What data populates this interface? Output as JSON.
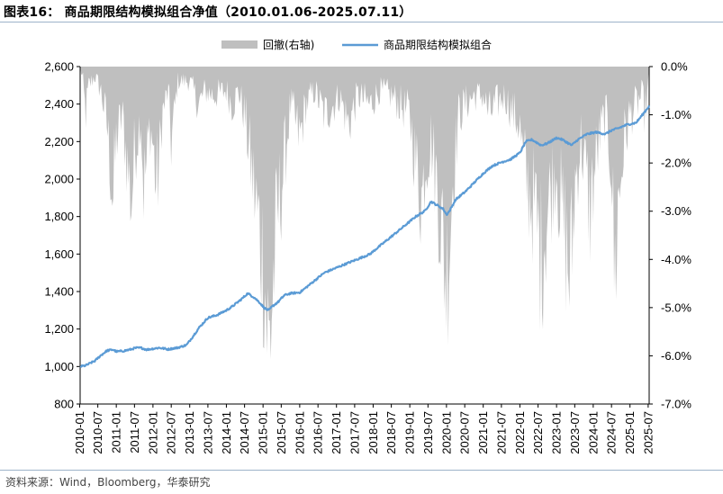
{
  "header": {
    "title": "图表16： 商品期限结构模拟组合净值（2010.01.06-2025.07.11）"
  },
  "footer": {
    "source": "资料来源：Wind，Bloomberg，华泰研究"
  },
  "colors": {
    "drawdown": "#bfbfbf",
    "nav": "#5b9bd5",
    "rule": "#9db3c9"
  },
  "chart_data": {
    "type": "area",
    "x_range": [
      "2010-01-06",
      "2025-07-11"
    ],
    "x_ticks": [
      "2010-01",
      "2010-07",
      "2011-01",
      "2011-07",
      "2012-01",
      "2012-07",
      "2013-01",
      "2013-07",
      "2014-01",
      "2014-07",
      "2015-01",
      "2015-07",
      "2016-01",
      "2016-07",
      "2017-01",
      "2017-07",
      "2018-01",
      "2018-07",
      "2019-01",
      "2019-07",
      "2020-01",
      "2020-07",
      "2021-01",
      "2021-07",
      "2022-01",
      "2022-07",
      "2023-01",
      "2023-07",
      "2024-01",
      "2024-07",
      "2025-01",
      "2025-07"
    ],
    "y_left": {
      "ticks": [
        "800",
        "1,000",
        "1,200",
        "1,400",
        "1,600",
        "1,800",
        "2,000",
        "2,200",
        "2,400",
        "2,600"
      ],
      "range": [
        800,
        2600
      ]
    },
    "y_right": {
      "ticks": [
        "0.0%",
        "-1.0%",
        "-2.0%",
        "-3.0%",
        "-4.0%",
        "-5.0%",
        "-6.0%",
        "-7.0%"
      ],
      "range": [
        -7.0,
        0.0
      ]
    },
    "legend": {
      "position": "top",
      "entries": [
        "回撤(右轴)",
        "商品期限结构模拟组合"
      ]
    },
    "series": [
      {
        "name": "回撤(右轴)",
        "axis": "right",
        "kind": "area",
        "unit": "%",
        "points": [
          [
            "2010-01-06",
            0.0
          ],
          [
            "2010-02",
            -0.3
          ],
          [
            "2010-03",
            -1.0
          ],
          [
            "2010-04",
            -0.4
          ],
          [
            "2010-06",
            -0.2
          ],
          [
            "2010-08",
            -0.5
          ],
          [
            "2010-10",
            -1.2
          ],
          [
            "2010-11",
            -2.0
          ],
          [
            "2010-12",
            -2.8
          ],
          [
            "2011-01",
            -1.5
          ],
          [
            "2011-03",
            -1.0
          ],
          [
            "2011-05",
            -2.2
          ],
          [
            "2011-06",
            -2.8
          ],
          [
            "2011-07",
            -1.8
          ],
          [
            "2011-09",
            -1.0
          ],
          [
            "2011-10",
            -2.5
          ],
          [
            "2011-11",
            -2.0
          ],
          [
            "2011-12",
            -1.2
          ],
          [
            "2012-01",
            -1.6
          ],
          [
            "2012-02",
            -2.5
          ],
          [
            "2012-03",
            -2.1
          ],
          [
            "2012-04",
            -1.0
          ],
          [
            "2012-06",
            -0.5
          ],
          [
            "2012-07",
            -1.6
          ],
          [
            "2012-08",
            -1.0
          ],
          [
            "2012-09",
            -0.3
          ],
          [
            "2013-01",
            -0.3
          ],
          [
            "2013-04",
            -0.8
          ],
          [
            "2013-06",
            -0.5
          ],
          [
            "2013-09",
            -0.6
          ],
          [
            "2014-01",
            -0.5
          ],
          [
            "2014-03",
            -0.8
          ],
          [
            "2014-05",
            -0.5
          ],
          [
            "2014-07",
            -1.0
          ],
          [
            "2014-09",
            -2.0
          ],
          [
            "2014-11",
            -3.0
          ],
          [
            "2015-01",
            -4.0
          ],
          [
            "2015-02",
            -5.0
          ],
          [
            "2015-03",
            -6.0
          ],
          [
            "2015-04",
            -4.8
          ],
          [
            "2015-06",
            -3.0
          ],
          [
            "2015-08",
            -2.0
          ],
          [
            "2015-10",
            -0.8
          ],
          [
            "2016-01",
            -1.5
          ],
          [
            "2016-03",
            -0.8
          ],
          [
            "2016-06",
            -0.5
          ],
          [
            "2016-09",
            -1.0
          ],
          [
            "2016-12",
            -0.8
          ],
          [
            "2017-02",
            -0.6
          ],
          [
            "2017-05",
            -1.2
          ],
          [
            "2017-08",
            -0.6
          ],
          [
            "2017-12",
            -0.8
          ],
          [
            "2018-03",
            -0.5
          ],
          [
            "2018-07",
            -0.6
          ],
          [
            "2018-10",
            -0.8
          ],
          [
            "2019-01",
            -1.0
          ],
          [
            "2019-03",
            -2.0
          ],
          [
            "2019-05",
            -2.8
          ],
          [
            "2019-06",
            -2.0
          ],
          [
            "2019-08",
            -1.5
          ],
          [
            "2019-10",
            -2.5
          ],
          [
            "2019-12",
            -3.8
          ],
          [
            "2020-01",
            -4.4
          ],
          [
            "2020-02",
            -3.6
          ],
          [
            "2020-03",
            -2.4
          ],
          [
            "2020-05",
            -1.0
          ],
          [
            "2020-07",
            -0.8
          ],
          [
            "2020-10",
            -0.6
          ],
          [
            "2021-01",
            -0.6
          ],
          [
            "2021-03",
            -1.0
          ],
          [
            "2021-05",
            -0.8
          ],
          [
            "2021-08",
            -0.6
          ],
          [
            "2021-11",
            -1.0
          ],
          [
            "2022-01",
            -1.2
          ],
          [
            "2022-02",
            -2.0
          ],
          [
            "2022-04",
            -2.6
          ],
          [
            "2022-06",
            -3.0
          ],
          [
            "2022-08",
            -4.0
          ],
          [
            "2022-09",
            -3.5
          ],
          [
            "2022-11",
            -2.6
          ],
          [
            "2023-01",
            -2.0
          ],
          [
            "2023-02",
            -2.8
          ],
          [
            "2023-04",
            -3.6
          ],
          [
            "2023-05",
            -4.3
          ],
          [
            "2023-06",
            -4.0
          ],
          [
            "2023-07",
            -2.5
          ],
          [
            "2023-09",
            -1.5
          ],
          [
            "2023-11",
            -2.5
          ],
          [
            "2023-12",
            -3.0
          ],
          [
            "2024-01",
            -2.4
          ],
          [
            "2024-03",
            -1.5
          ],
          [
            "2024-05",
            -1.0
          ],
          [
            "2024-07",
            -2.0
          ],
          [
            "2024-08",
            -4.5
          ],
          [
            "2024-09",
            -3.0
          ],
          [
            "2024-11",
            -1.6
          ],
          [
            "2025-01",
            -1.0
          ],
          [
            "2025-03",
            -0.8
          ],
          [
            "2025-05",
            -0.6
          ],
          [
            "2025-06",
            -1.0
          ],
          [
            "2025-07-11",
            -0.2
          ]
        ]
      },
      {
        "name": "商品期限结构模拟组合",
        "axis": "left",
        "kind": "line",
        "points": [
          [
            "2010-01-06",
            1000
          ],
          [
            "2010-03",
            1005
          ],
          [
            "2010-06",
            1030
          ],
          [
            "2010-08",
            1060
          ],
          [
            "2010-10",
            1085
          ],
          [
            "2010-12",
            1090
          ],
          [
            "2011-01",
            1080
          ],
          [
            "2011-03",
            1082
          ],
          [
            "2011-06",
            1092
          ],
          [
            "2011-07",
            1098
          ],
          [
            "2011-09",
            1100
          ],
          [
            "2011-11",
            1090
          ],
          [
            "2012-01",
            1095
          ],
          [
            "2012-03",
            1100
          ],
          [
            "2012-06",
            1092
          ],
          [
            "2012-07",
            1095
          ],
          [
            "2012-09",
            1100
          ],
          [
            "2012-12",
            1115
          ],
          [
            "2013-02",
            1160
          ],
          [
            "2013-04",
            1205
          ],
          [
            "2013-07",
            1260
          ],
          [
            "2013-10",
            1275
          ],
          [
            "2014-01",
            1300
          ],
          [
            "2014-03",
            1320
          ],
          [
            "2014-06",
            1360
          ],
          [
            "2014-08",
            1390
          ],
          [
            "2014-10",
            1370
          ],
          [
            "2014-12",
            1340
          ],
          [
            "2015-01",
            1320
          ],
          [
            "2015-02",
            1305
          ],
          [
            "2015-03",
            1300
          ],
          [
            "2015-04",
            1320
          ],
          [
            "2015-06",
            1345
          ],
          [
            "2015-08",
            1380
          ],
          [
            "2015-10",
            1390
          ],
          [
            "2016-01",
            1395
          ],
          [
            "2016-03",
            1420
          ],
          [
            "2016-06",
            1460
          ],
          [
            "2016-09",
            1500
          ],
          [
            "2016-12",
            1520
          ],
          [
            "2017-03",
            1540
          ],
          [
            "2017-06",
            1560
          ],
          [
            "2017-09",
            1580
          ],
          [
            "2017-12",
            1600
          ],
          [
            "2018-03",
            1640
          ],
          [
            "2018-06",
            1680
          ],
          [
            "2018-09",
            1720
          ],
          [
            "2018-12",
            1760
          ],
          [
            "2019-03",
            1800
          ],
          [
            "2019-06",
            1830
          ],
          [
            "2019-08",
            1880
          ],
          [
            "2019-10",
            1860
          ],
          [
            "2019-12",
            1840
          ],
          [
            "2020-01",
            1810
          ],
          [
            "2020-02",
            1830
          ],
          [
            "2020-04",
            1890
          ],
          [
            "2020-07",
            1930
          ],
          [
            "2020-10",
            1980
          ],
          [
            "2021-01",
            2030
          ],
          [
            "2021-04",
            2070
          ],
          [
            "2021-07",
            2090
          ],
          [
            "2021-10",
            2105
          ],
          [
            "2022-01",
            2140
          ],
          [
            "2022-03",
            2200
          ],
          [
            "2022-05",
            2210
          ],
          [
            "2022-08",
            2180
          ],
          [
            "2022-10",
            2190
          ],
          [
            "2023-01",
            2220
          ],
          [
            "2023-03",
            2210
          ],
          [
            "2023-05",
            2190
          ],
          [
            "2023-06",
            2180
          ],
          [
            "2023-08",
            2210
          ],
          [
            "2023-11",
            2240
          ],
          [
            "2024-02",
            2250
          ],
          [
            "2024-05",
            2240
          ],
          [
            "2024-07",
            2260
          ],
          [
            "2024-09",
            2270
          ],
          [
            "2024-12",
            2290
          ],
          [
            "2025-03",
            2300
          ],
          [
            "2025-05",
            2340
          ],
          [
            "2025-07-11",
            2390
          ]
        ]
      }
    ]
  }
}
